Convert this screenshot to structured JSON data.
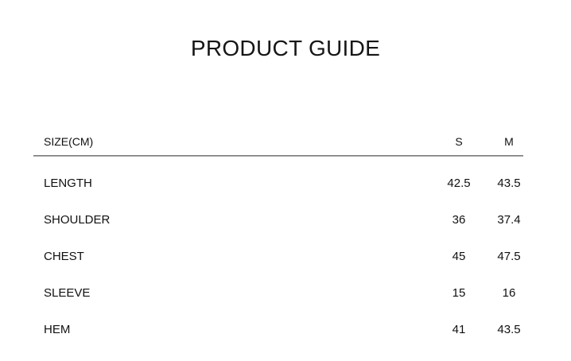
{
  "page": {
    "title": "PRODUCT GUIDE"
  },
  "table": {
    "unit_header": "SIZE(CM)",
    "size_columns": [
      "S",
      "M"
    ],
    "rows": [
      {
        "label": "LENGTH",
        "values": [
          "42.5",
          "43.5"
        ]
      },
      {
        "label": "SHOULDER",
        "values": [
          "36",
          "37.4"
        ]
      },
      {
        "label": "CHEST",
        "values": [
          "45",
          "47.5"
        ]
      },
      {
        "label": "SLEEVE",
        "values": [
          "15",
          "16"
        ]
      },
      {
        "label": "HEM",
        "values": [
          "41",
          "43.5"
        ]
      }
    ]
  },
  "colors": {
    "background": "#ffffff",
    "text": "#111111",
    "divider": "#8f8f8f"
  }
}
